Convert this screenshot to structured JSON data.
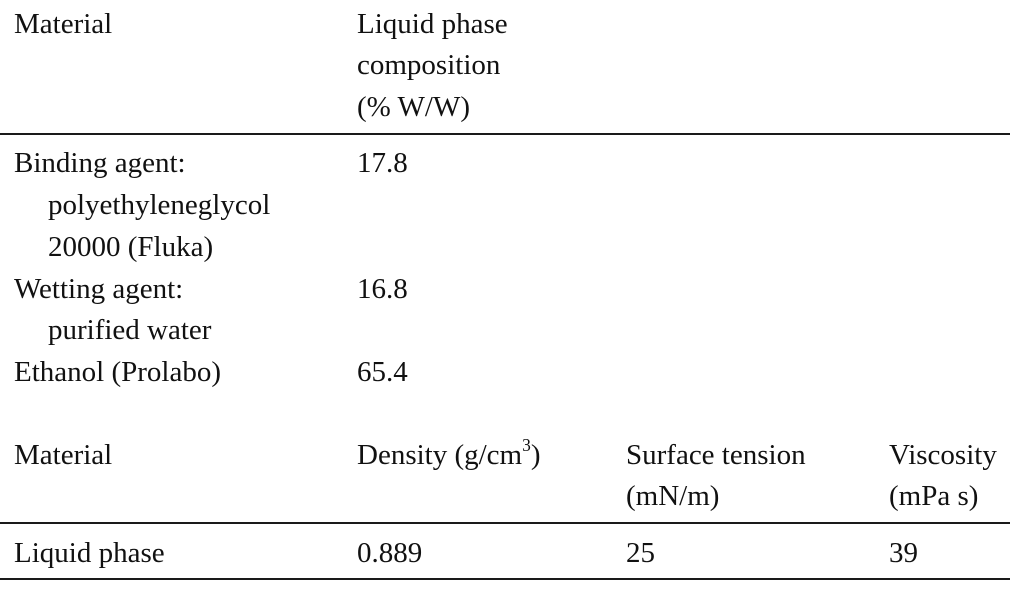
{
  "table1": {
    "headers": {
      "material": "Material",
      "composition_line1": "Liquid phase",
      "composition_line2": "composition",
      "composition_line3": "(% W/W)"
    },
    "rows": [
      {
        "material_line1": "Binding agent:",
        "material_line2": "polyethyleneglycol",
        "material_line3": "20000 (Fluka)",
        "value": "17.8"
      },
      {
        "material_line1": "Wetting agent:",
        "material_line2": "purified water",
        "value": "16.8"
      },
      {
        "material_line1": "Ethanol (Prolabo)",
        "value": "65.4"
      }
    ]
  },
  "table2": {
    "headers": {
      "material": "Material",
      "density_prefix": "Density (g/cm",
      "density_exp": "3",
      "density_suffix": ")",
      "surface_line1": "Surface tension",
      "surface_line2": "(mN/m)",
      "viscosity_line1": "Viscosity",
      "viscosity_line2": "(mPa s)"
    },
    "rows": [
      {
        "material": "Liquid phase",
        "density": "0.889",
        "surface_tension": "25",
        "viscosity": "39"
      }
    ]
  }
}
